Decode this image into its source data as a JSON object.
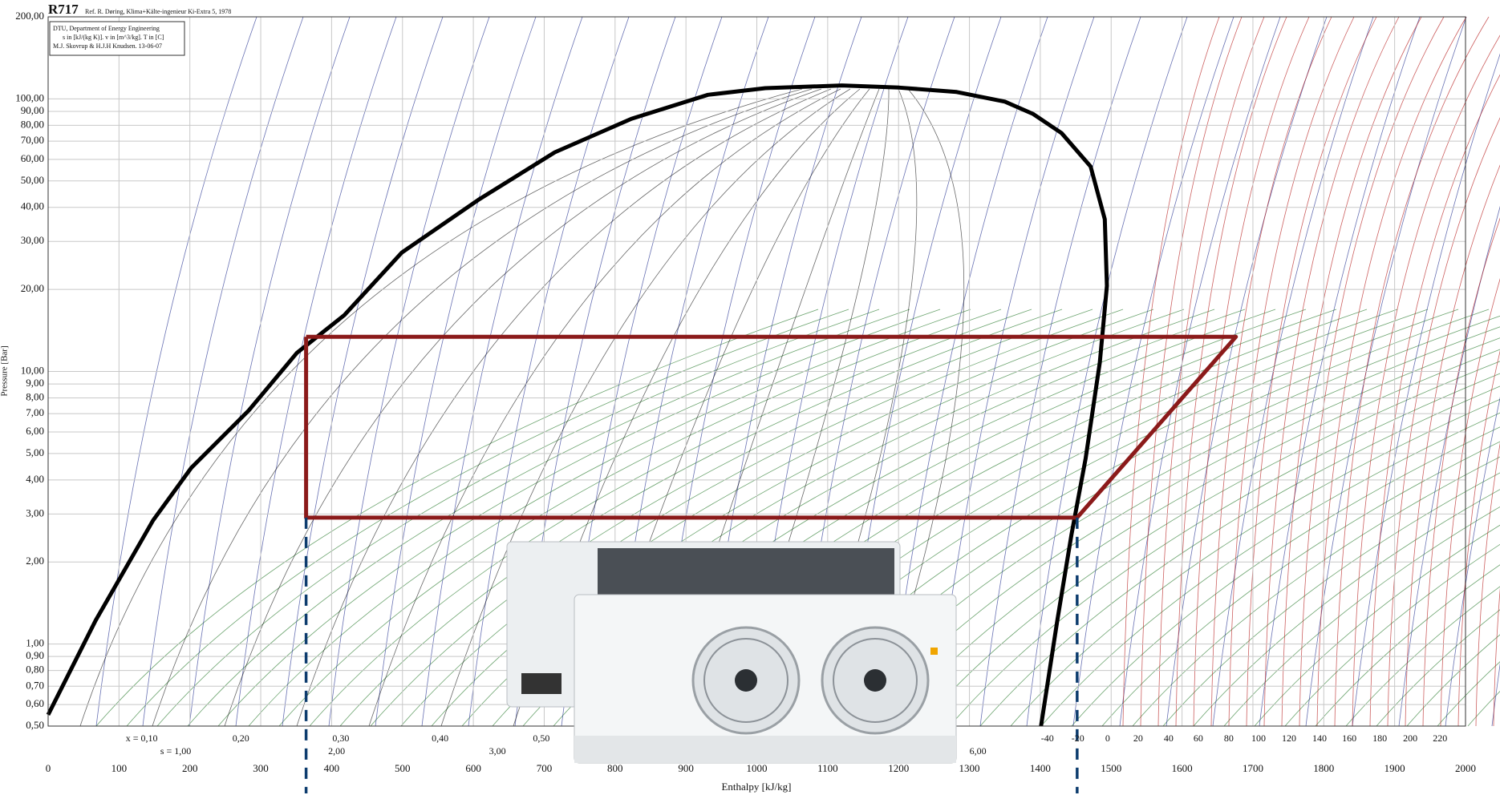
{
  "chart_data": {
    "type": "line",
    "title": "R717",
    "subtitle": "Ref. R. Døring, Klima+Kälte-ingenieur Ki-Extra 5, 1978",
    "notes": [
      "DTU, Department of Energy Engineering",
      "s in [kJ/(kg K)]. v in [m^3/kg]. T in [C]",
      "M.J. Skovrup & H.J.H Knudsen. 13-06-07"
    ],
    "x_label": "Enthalpy [kJ/kg]",
    "y_label": "Pressure [Bar]",
    "xlim": [
      0,
      2000
    ],
    "xticks": [
      0,
      100,
      200,
      300,
      400,
      500,
      600,
      700,
      800,
      900,
      1000,
      1100,
      1200,
      1300,
      1400,
      1500,
      1600,
      1700,
      1800,
      1900,
      2000
    ],
    "ylim": [
      0.5,
      200
    ],
    "log_y": true,
    "grid": true,
    "yticks": [
      {
        "value": 0.5,
        "label": "0,50"
      },
      {
        "value": 0.6,
        "label": "0,60"
      },
      {
        "value": 0.7,
        "label": "0,70"
      },
      {
        "value": 0.8,
        "label": "0,80"
      },
      {
        "value": 0.9,
        "label": "0,90"
      },
      {
        "value": 1,
        "label": "1,00"
      },
      {
        "value": 2,
        "label": "2,00"
      },
      {
        "value": 3,
        "label": "3,00"
      },
      {
        "value": 4,
        "label": "4,00"
      },
      {
        "value": 5,
        "label": "5,00"
      },
      {
        "value": 6,
        "label": "6,00"
      },
      {
        "value": 7,
        "label": "7,00"
      },
      {
        "value": 8,
        "label": "8,00"
      },
      {
        "value": 9,
        "label": "9,00"
      },
      {
        "value": 10,
        "label": "10,00"
      },
      {
        "value": 20,
        "label": "20,00"
      },
      {
        "value": 30,
        "label": "30,00"
      },
      {
        "value": 40,
        "label": "40,00"
      },
      {
        "value": 50,
        "label": "50,00"
      },
      {
        "value": 60,
        "label": "60,00"
      },
      {
        "value": 70,
        "label": "70,00"
      },
      {
        "value": 80,
        "label": "80,00"
      },
      {
        "value": 90,
        "label": "90,00"
      },
      {
        "value": 100,
        "label": "100,00"
      },
      {
        "value": 200,
        "label": "200,00"
      }
    ],
    "series": [
      {
        "color": "#000000",
        "x": [
          0,
          67,
          148,
          202,
          283,
          351,
          418,
          499,
          607,
          715,
          823,
          931,
          1012,
          1120,
          1201,
          1282,
          1350,
          1390,
          1430,
          1471,
          1491,
          1494,
          1484,
          1464,
          1444,
          1424,
          1401
        ],
        "values": [
          0.55,
          1.22,
          2.84,
          4.43,
          7.19,
          11.7,
          16.1,
          27.3,
          42.6,
          63.7,
          84.5,
          103.5,
          109.5,
          112,
          110,
          106,
          97.7,
          88,
          74.9,
          56.5,
          36.2,
          20.6,
          10.8,
          4.8,
          2.52,
          1.22,
          0.5
        ]
      },
      {
        "color": "#8b1a1a",
        "x": [
          364,
          364,
          1452,
          1676,
          364
        ],
        "values": [
          13.4,
          2.91,
          2.91,
          13.4,
          13.4
        ]
      }
    ],
    "quality_ticks": [
      {
        "value": 132,
        "label": "x = 0,10"
      },
      {
        "value": 272,
        "label": "0,20"
      },
      {
        "value": 413,
        "label": "0,30"
      },
      {
        "value": 553,
        "label": "0,40"
      },
      {
        "value": 696,
        "label": "0,50"
      }
    ],
    "entropy_ticks": [
      {
        "value": 180,
        "label": "s = 1,00"
      },
      {
        "value": 407,
        "label": "2,00"
      },
      {
        "value": 634,
        "label": "3,00"
      },
      {
        "value": 1312,
        "label": "6,00"
      }
    ],
    "temperature_ticks": [
      {
        "value": 1410,
        "label": "-40"
      },
      {
        "value": 1453,
        "label": "-20"
      },
      {
        "value": 1495,
        "label": "0"
      },
      {
        "value": 1538,
        "label": "20"
      },
      {
        "value": 1581,
        "label": "40"
      },
      {
        "value": 1623,
        "label": "60"
      },
      {
        "value": 1666,
        "label": "80"
      },
      {
        "value": 1708,
        "label": "100"
      },
      {
        "value": 1751,
        "label": "120"
      },
      {
        "value": 1794,
        "label": "140"
      },
      {
        "value": 1836,
        "label": "160"
      },
      {
        "value": 1879,
        "label": "180"
      },
      {
        "value": 1922,
        "label": "200"
      },
      {
        "value": 1964,
        "label": "220"
      }
    ]
  }
}
